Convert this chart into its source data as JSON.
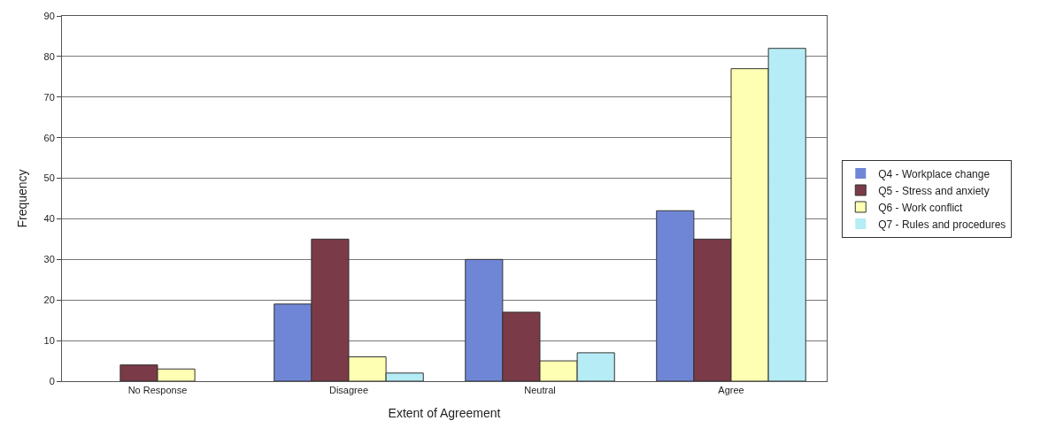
{
  "chart_data": {
    "type": "bar",
    "xlabel": "Extent of Agreement",
    "ylabel": "Frequency",
    "categories": [
      "No Response",
      "Disagree",
      "Neutral",
      "Agree"
    ],
    "series": [
      {
        "name": "Q4 - Workplace change",
        "color": "#6f86d6",
        "values": [
          0,
          19,
          30,
          42
        ]
      },
      {
        "name": "Q5 - Stress and anxiety",
        "color": "#7b3a47",
        "values": [
          4,
          35,
          17,
          35
        ]
      },
      {
        "name": "Q6 - Work conflict",
        "color": "#ffffb3",
        "values": [
          3,
          6,
          5,
          77
        ]
      },
      {
        "name": "Q7 - Rules and procedures",
        "color": "#b5ecf5",
        "values": [
          0,
          2,
          7,
          82
        ]
      }
    ],
    "ylim": [
      0,
      90
    ],
    "yticks": [
      0,
      10,
      20,
      30,
      40,
      50,
      60,
      70,
      80,
      90
    ],
    "grid": "y",
    "legend": "right"
  }
}
